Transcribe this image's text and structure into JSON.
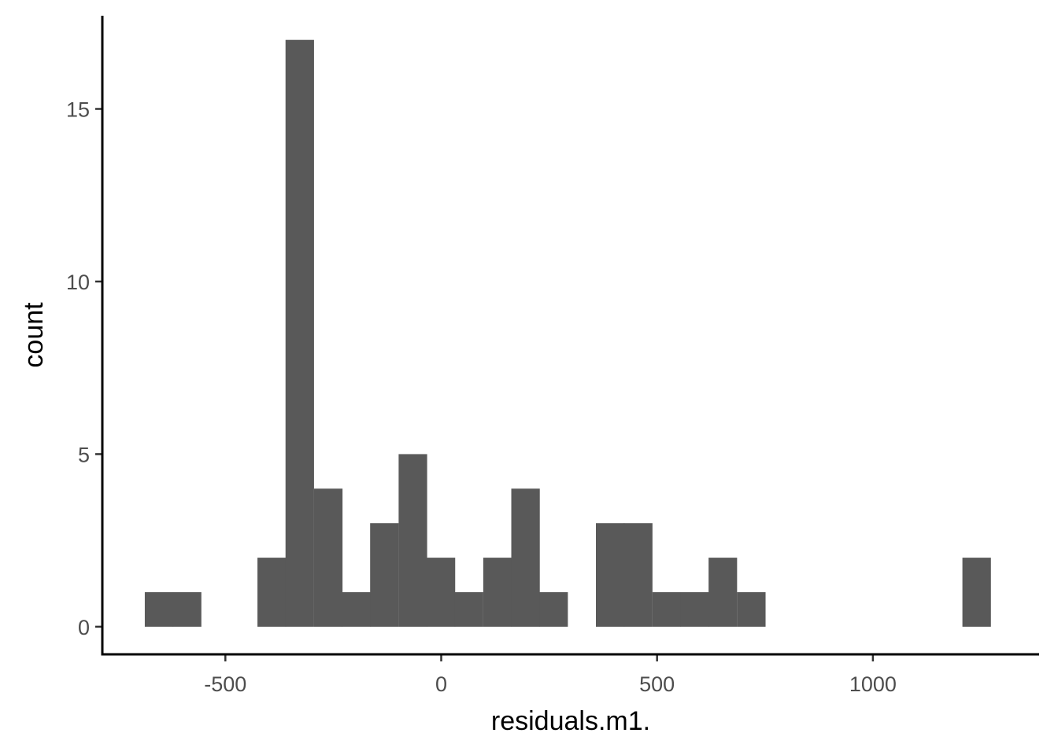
{
  "chart_data": {
    "type": "bar",
    "title": "",
    "xlabel": "residuals.m1.",
    "ylabel": "count",
    "xlim": [
      -785,
      1385
    ],
    "ylim": [
      -0.8,
      17.7
    ],
    "x_ticks": [
      -500,
      0,
      500,
      1000
    ],
    "y_ticks": [
      0,
      5,
      10,
      15
    ],
    "x_tick_labels": [
      "-500",
      "0",
      "500",
      "1000"
    ],
    "y_tick_labels": [
      "0",
      "5",
      "10",
      "15"
    ],
    "bin_width": 65.3,
    "bins": [
      {
        "x": -654,
        "count": 1
      },
      {
        "x": -589,
        "count": 1
      },
      {
        "x": -524,
        "count": 0
      },
      {
        "x": -458,
        "count": 0
      },
      {
        "x": -393,
        "count": 2
      },
      {
        "x": -328,
        "count": 17
      },
      {
        "x": -262,
        "count": 4
      },
      {
        "x": -197,
        "count": 1
      },
      {
        "x": -132,
        "count": 3
      },
      {
        "x": -66,
        "count": 5
      },
      {
        "x": -1,
        "count": 2
      },
      {
        "x": 64,
        "count": 1
      },
      {
        "x": 130,
        "count": 2
      },
      {
        "x": 195,
        "count": 4
      },
      {
        "x": 260,
        "count": 1
      },
      {
        "x": 326,
        "count": 0
      },
      {
        "x": 391,
        "count": 3
      },
      {
        "x": 456,
        "count": 3
      },
      {
        "x": 522,
        "count": 1
      },
      {
        "x": 587,
        "count": 1
      },
      {
        "x": 652,
        "count": 2
      },
      {
        "x": 718,
        "count": 1
      },
      {
        "x": 783,
        "count": 0
      },
      {
        "x": 848,
        "count": 0
      },
      {
        "x": 914,
        "count": 0
      },
      {
        "x": 979,
        "count": 0
      },
      {
        "x": 1044,
        "count": 0
      },
      {
        "x": 1110,
        "count": 0
      },
      {
        "x": 1175,
        "count": 0
      },
      {
        "x": 1240,
        "count": 2
      }
    ],
    "bar_color": "#595959",
    "grid": false,
    "legend": "none"
  }
}
